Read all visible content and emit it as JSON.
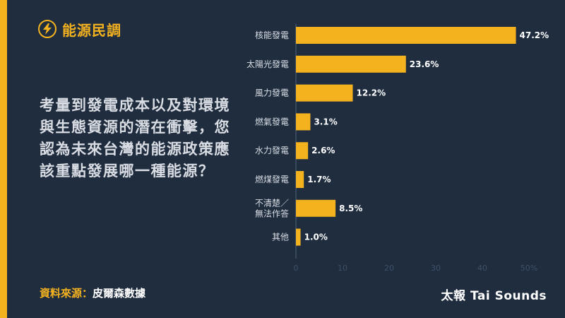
{
  "header": {
    "title": "能源民調",
    "icon": "lightning-bolt-icon"
  },
  "question": "考量到發電成本以及對環境與生態資源的潛在衝擊，您認為未來台灣的能源政策應該重點發展哪一種能源？",
  "footer": {
    "source_label": "資料來源：",
    "source_value": "皮爾森數據",
    "publisher": "太報 Tai Sounds"
  },
  "colors": {
    "accent": "#f5b21f",
    "background": "#1f2d3f",
    "axis": "#3f5068"
  },
  "chart_data": {
    "type": "bar",
    "orientation": "horizontal",
    "categories": [
      [
        "核能發電"
      ],
      [
        "太陽光發電"
      ],
      [
        "風力發電"
      ],
      [
        "燃氣發電"
      ],
      [
        "水力發電"
      ],
      [
        "燃煤發電"
      ],
      [
        "不清楚／",
        "無法作答"
      ],
      [
        "其他"
      ]
    ],
    "values": [
      47.2,
      23.6,
      12.2,
      3.1,
      2.6,
      1.7,
      8.5,
      1.0
    ],
    "value_labels": [
      "47.2%",
      "23.6%",
      "12.2%",
      "3.1%",
      "2.6%",
      "1.7%",
      "8.5%",
      "1.0%"
    ],
    "xticks": [
      "0",
      "10",
      "20",
      "30",
      "40",
      "50%"
    ],
    "xtick_values": [
      0,
      10,
      20,
      30,
      40,
      50
    ],
    "xlim": [
      0,
      50
    ],
    "grid": false
  }
}
